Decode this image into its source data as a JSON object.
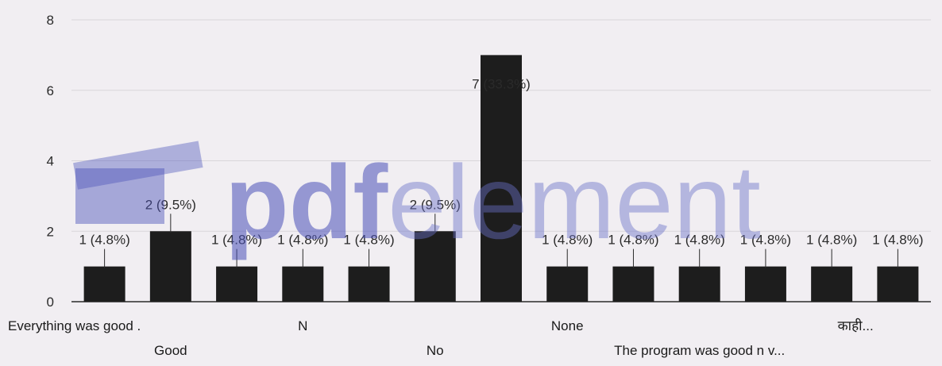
{
  "chart_data": {
    "type": "bar",
    "categories": [
      "Everything was good .",
      "Good",
      "",
      "N",
      "",
      "No",
      "",
      "None",
      "",
      "The program was good n v...",
      "",
      "काही...",
      ""
    ],
    "values": [
      1,
      2,
      1,
      1,
      1,
      2,
      7,
      1,
      1,
      1,
      1,
      1,
      1
    ],
    "data_labels": [
      "1 (4.8%)",
      "2 (9.5%)",
      "1 (4.8%)",
      "1 (4.8%)",
      "1 (4.8%)",
      "2 (9.5%)",
      "7 (33.3%)",
      "1 (4.8%)",
      "1 (4.8%)",
      "1 (4.8%)",
      "1 (4.8%)",
      "1 (4.8%)",
      "1 (4.8%)"
    ],
    "category_label_rows": [
      0,
      1,
      0,
      0,
      0,
      1,
      0,
      0,
      0,
      1,
      0,
      0,
      0
    ],
    "y_ticks": [
      "0",
      "2",
      "4",
      "6",
      "8"
    ],
    "ylim": [
      0,
      8
    ],
    "grid": true,
    "bar_color": "#1d1d1d"
  },
  "watermark": {
    "bold_part": "pdf",
    "thin_part": "element",
    "color": "#4950b8"
  }
}
